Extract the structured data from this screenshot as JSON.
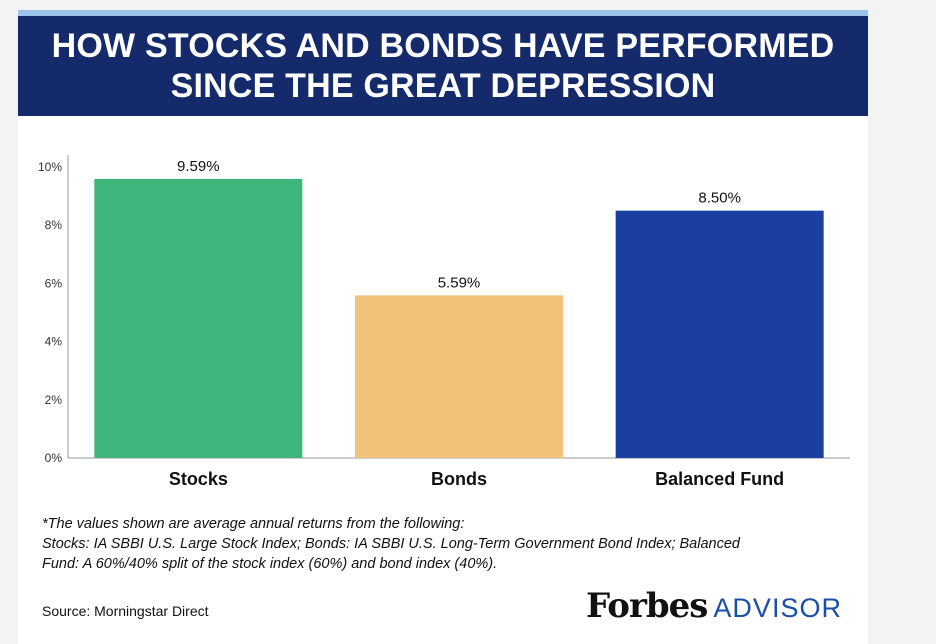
{
  "title_line1": "HOW STOCKS AND BONDS HAVE PERFORMED",
  "title_line2": "SINCE THE GREAT DEPRESSION",
  "chart_data": {
    "type": "bar",
    "categories": [
      "Stocks",
      "Bonds",
      "Balanced Fund"
    ],
    "values": [
      9.59,
      5.59,
      8.5
    ],
    "value_labels": [
      "9.59%",
      "5.59%",
      "8.50%"
    ],
    "colors": [
      "#3db57b",
      "#f0c27a",
      "#1a3fa0"
    ],
    "yticks": [
      "0%",
      "2%",
      "4%",
      "6%",
      "8%",
      "10%"
    ],
    "ytick_values": [
      0,
      2,
      4,
      6,
      8,
      10
    ],
    "ylim": [
      0,
      10
    ],
    "grid": false
  },
  "note_line1": "*The values shown are average annual returns from the following:",
  "note_line2": "Stocks: IA SBBI U.S. Large Stock Index; Bonds: IA SBBI U.S. Long-Term Government Bond Index; Balanced",
  "note_line3": "Fund: A 60%/40% split of the stock index (60%) and bond index (40%).",
  "source": "Source: Morningstar Direct",
  "logo": {
    "brand": "Forbes",
    "sub": "ADVISOR"
  }
}
